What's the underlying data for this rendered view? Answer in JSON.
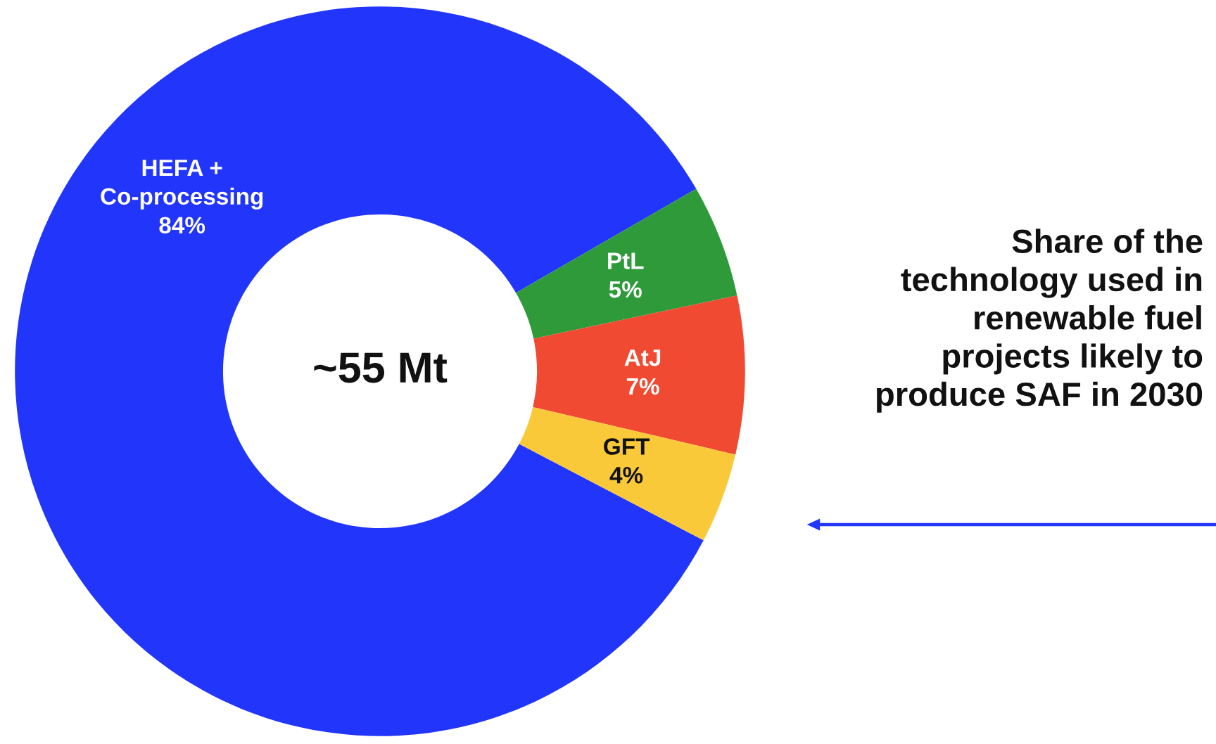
{
  "chart_data": {
    "type": "donut",
    "title": "Share of the technology used in renewable fuel projects likely to produce SAF in 2030",
    "categories": [
      "HEFA +\nCo-processing",
      "PtL",
      "AtJ",
      "GFT"
    ],
    "values": [
      84,
      5,
      7,
      4
    ],
    "value_labels": [
      "84%",
      "5%",
      "7%",
      "4%"
    ],
    "colors": [
      "#2236fb",
      "#2e9a3a",
      "#f04a33",
      "#f9c93a"
    ],
    "annotations": [
      "~55 Mt"
    ],
    "legend": false
  }
}
